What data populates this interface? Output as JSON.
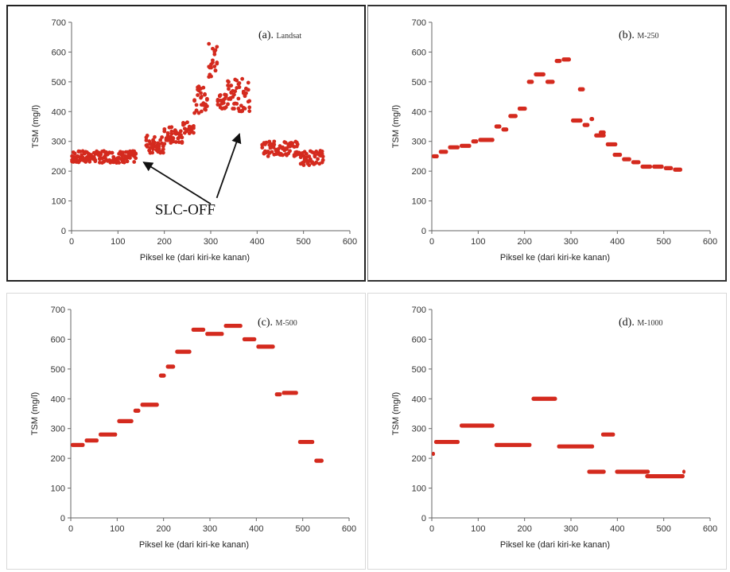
{
  "chart_data": [
    {
      "type": "scatter",
      "panel_label": "(a).",
      "panel_name": "Landsat",
      "xlabel": "Piksel ke (dari kiri-ke kanan)",
      "ylabel": "TSM (mg/l)",
      "xlim": [
        0,
        600
      ],
      "ylim": [
        0,
        700
      ],
      "xticks": [
        0,
        100,
        200,
        300,
        400,
        500,
        600
      ],
      "yticks": [
        0,
        100,
        200,
        300,
        400,
        500,
        600,
        700
      ],
      "annotation": "SLC-OFF",
      "color": "#d42a1e",
      "segments": [
        {
          "x": [
            0,
            140
          ],
          "y": 248,
          "spread": 40
        },
        {
          "x": [
            160,
            200
          ],
          "y": 290,
          "spread": 60
        },
        {
          "x": [
            200,
            240
          ],
          "y": 320,
          "spread": 60
        },
        {
          "x": [
            240,
            265
          ],
          "y": 345,
          "spread": 40
        },
        {
          "x": [
            265,
            295
          ],
          "y": 440,
          "spread": 90
        },
        {
          "x": [
            295,
            315
          ],
          "y": 570,
          "spread": 130
        },
        {
          "x": [
            315,
            335
          ],
          "y": 440,
          "spread": 60
        },
        {
          "x": [
            335,
            385
          ],
          "y": 455,
          "spread": 110
        },
        {
          "x": [
            410,
            490
          ],
          "y": 275,
          "spread": 50
        },
        {
          "x": [
            490,
            545
          ],
          "y": 245,
          "spread": 50
        }
      ]
    },
    {
      "type": "scatter",
      "panel_label": "(b).",
      "panel_name": "M-250",
      "xlabel": "Piksel ke (dari kiri-ke kanan)",
      "ylabel": "TSM (mg/l)",
      "xlim": [
        0,
        600
      ],
      "ylim": [
        0,
        700
      ],
      "xticks": [
        0,
        100,
        200,
        300,
        400,
        500,
        600
      ],
      "yticks": [
        0,
        100,
        200,
        300,
        400,
        500,
        600,
        700
      ],
      "color": "#d42a1e",
      "segments": [
        {
          "x": [
            0,
            15
          ],
          "y": 250
        },
        {
          "x": [
            15,
            35
          ],
          "y": 265
        },
        {
          "x": [
            35,
            60
          ],
          "y": 280
        },
        {
          "x": [
            60,
            85
          ],
          "y": 285
        },
        {
          "x": [
            85,
            100
          ],
          "y": 300
        },
        {
          "x": [
            100,
            135
          ],
          "y": 305
        },
        {
          "x": [
            135,
            150
          ],
          "y": 350
        },
        {
          "x": [
            150,
            165
          ],
          "y": 340
        },
        {
          "x": [
            165,
            185
          ],
          "y": 385
        },
        {
          "x": [
            185,
            205
          ],
          "y": 410
        },
        {
          "x": [
            205,
            220
          ],
          "y": 500
        },
        {
          "x": [
            220,
            245
          ],
          "y": 525
        },
        {
          "x": [
            245,
            265
          ],
          "y": 500
        },
        {
          "x": [
            265,
            280
          ],
          "y": 570
        },
        {
          "x": [
            280,
            300
          ],
          "y": 575
        },
        {
          "x": [
            300,
            325
          ],
          "y": 370
        },
        {
          "x": [
            315,
            330
          ],
          "y": 475
        },
        {
          "x": [
            325,
            340
          ],
          "y": 355
        },
        {
          "x": [
            340,
            350
          ],
          "y": 375
        },
        {
          "x": [
            350,
            375
          ],
          "y": 320
        },
        {
          "x": [
            360,
            375
          ],
          "y": 330
        },
        {
          "x": [
            375,
            400
          ],
          "y": 290
        },
        {
          "x": [
            390,
            410
          ],
          "y": 255
        },
        {
          "x": [
            410,
            430
          ],
          "y": 240
        },
        {
          "x": [
            430,
            450
          ],
          "y": 230
        },
        {
          "x": [
            450,
            475
          ],
          "y": 215
        },
        {
          "x": [
            475,
            500
          ],
          "y": 215
        },
        {
          "x": [
            500,
            520
          ],
          "y": 210
        },
        {
          "x": [
            520,
            540
          ],
          "y": 205
        }
      ]
    },
    {
      "type": "scatter",
      "panel_label": "(c).",
      "panel_name": "M-500",
      "xlabel": "Piksel ke (dari kiri-ke kanan)",
      "ylabel": "TSM (mg/l)",
      "xlim": [
        0,
        600
      ],
      "ylim": [
        0,
        700
      ],
      "xticks": [
        0,
        100,
        200,
        300,
        400,
        500,
        600
      ],
      "yticks": [
        0,
        100,
        200,
        300,
        400,
        500,
        600,
        700
      ],
      "color": "#d42a1e",
      "segments": [
        {
          "x": [
            0,
            30
          ],
          "y": 245
        },
        {
          "x": [
            30,
            60
          ],
          "y": 260
        },
        {
          "x": [
            60,
            100
          ],
          "y": 280
        },
        {
          "x": [
            100,
            135
          ],
          "y": 325
        },
        {
          "x": [
            135,
            150
          ],
          "y": 360
        },
        {
          "x": [
            150,
            190
          ],
          "y": 380
        },
        {
          "x": [
            190,
            205
          ],
          "y": 478
        },
        {
          "x": [
            205,
            225
          ],
          "y": 508
        },
        {
          "x": [
            225,
            260
          ],
          "y": 558
        },
        {
          "x": [
            260,
            290
          ],
          "y": 632
        },
        {
          "x": [
            290,
            330
          ],
          "y": 618
        },
        {
          "x": [
            330,
            370
          ],
          "y": 645
        },
        {
          "x": [
            370,
            400
          ],
          "y": 600
        },
        {
          "x": [
            400,
            440
          ],
          "y": 575
        },
        {
          "x": [
            440,
            455
          ],
          "y": 415
        },
        {
          "x": [
            455,
            490
          ],
          "y": 420
        },
        {
          "x": [
            490,
            525
          ],
          "y": 255
        },
        {
          "x": [
            525,
            545
          ],
          "y": 192
        }
      ]
    },
    {
      "type": "scatter",
      "panel_label": "(d).",
      "panel_name": "M-1000",
      "xlabel": "Piksel ke (dari kiri-ke kanan)",
      "ylabel": "TSM (mg/l)",
      "xlim": [
        0,
        600
      ],
      "ylim": [
        0,
        700
      ],
      "xticks": [
        0,
        100,
        200,
        300,
        400,
        500,
        600
      ],
      "yticks": [
        0,
        100,
        200,
        300,
        400,
        500,
        600,
        700
      ],
      "color": "#d42a1e",
      "segments": [
        {
          "x": [
            0,
            5
          ],
          "y": 215
        },
        {
          "x": [
            5,
            60
          ],
          "y": 255
        },
        {
          "x": [
            60,
            135
          ],
          "y": 310
        },
        {
          "x": [
            135,
            215
          ],
          "y": 245
        },
        {
          "x": [
            215,
            270
          ],
          "y": 400
        },
        {
          "x": [
            270,
            350
          ],
          "y": 240
        },
        {
          "x": [
            335,
            375
          ],
          "y": 155
        },
        {
          "x": [
            365,
            395
          ],
          "y": 280
        },
        {
          "x": [
            395,
            470
          ],
          "y": 155
        },
        {
          "x": [
            460,
            545
          ],
          "y": 140
        },
        {
          "x": [
            540,
            545
          ],
          "y": 155
        }
      ]
    }
  ]
}
